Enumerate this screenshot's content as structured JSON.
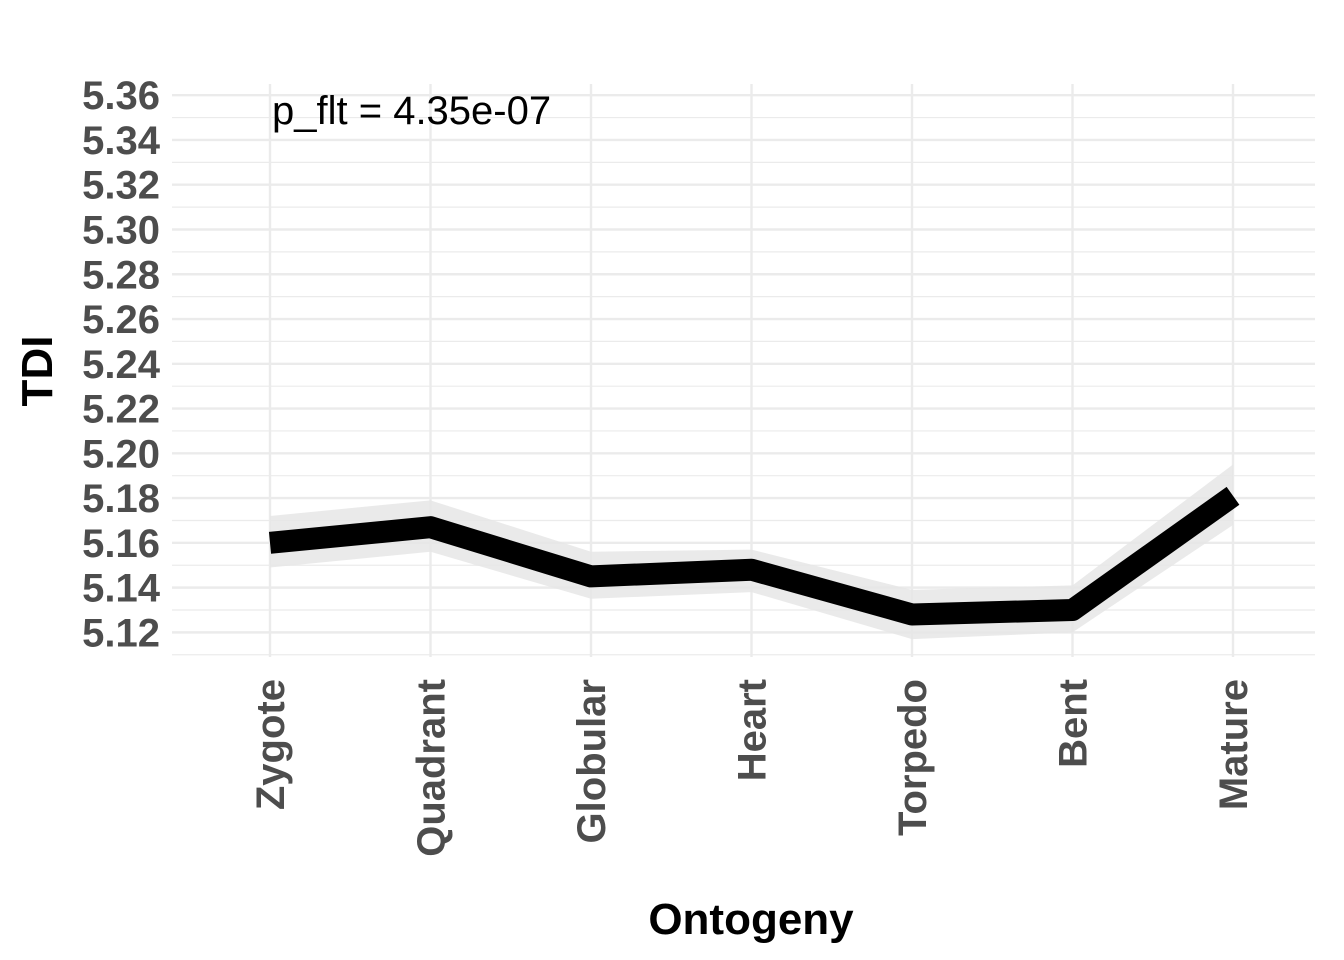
{
  "chart_data": {
    "type": "line",
    "xlabel": "Ontogeny",
    "ylabel": "TDI",
    "categories": [
      "Zygote",
      "Quadrant",
      "Globular",
      "Heart",
      "Torpedo",
      "Bent",
      "Mature"
    ],
    "series": [
      {
        "values": [
          5.16,
          5.167,
          5.145,
          5.148,
          5.128,
          5.13,
          5.181
        ],
        "lower": [
          5.149,
          5.156,
          5.135,
          5.138,
          5.117,
          5.12,
          5.168
        ],
        "upper": [
          5.172,
          5.179,
          5.156,
          5.157,
          5.139,
          5.141,
          5.195
        ]
      }
    ],
    "yticks": [
      "5.12",
      "5.14",
      "5.16",
      "5.18",
      "5.20",
      "5.22",
      "5.24",
      "5.26",
      "5.28",
      "5.30",
      "5.32",
      "5.34",
      "5.36"
    ],
    "ylim": [
      5.109,
      5.365
    ],
    "grid": true,
    "annotation": "p_flt = 4.35e-07",
    "colors": {
      "line": "#000000",
      "ribbon": "#e6e6e6",
      "grid": "#ebebeb",
      "tick_text": "#4d4d4d"
    }
  }
}
